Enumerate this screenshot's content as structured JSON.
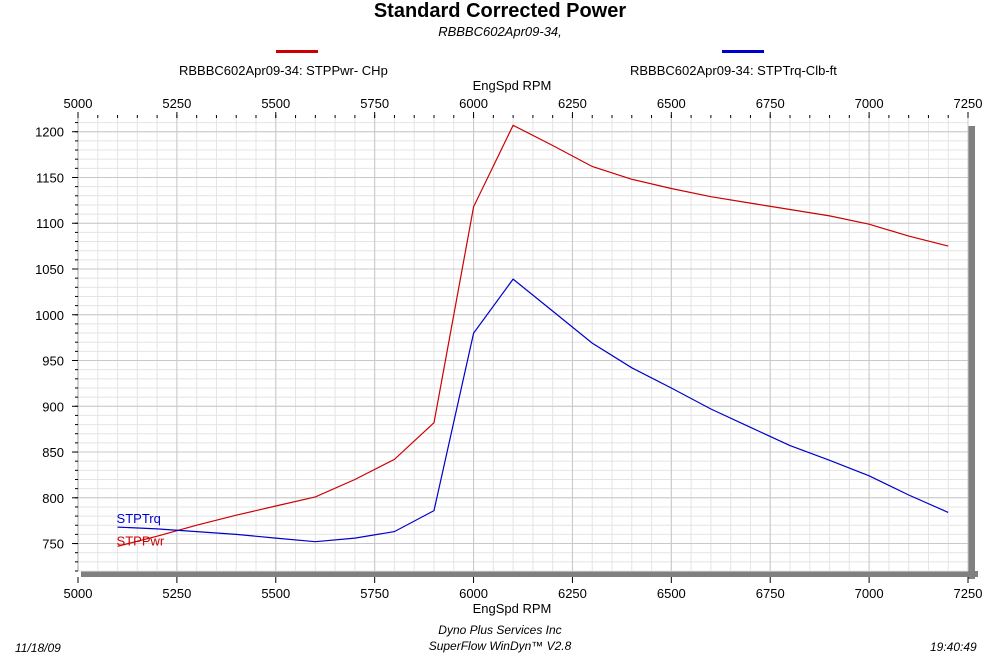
{
  "title": "Standard Corrected Power",
  "subtitle": "RBBBC602Apr09-34,",
  "legend": [
    {
      "label": "RBBBC602Apr09-34: STPPwr- CHp",
      "color": "#cc0000"
    },
    {
      "label": "RBBBC602Apr09-34: STPTrq-Clb-ft",
      "color": "#0000cc"
    }
  ],
  "footer": {
    "date": "11/18/09",
    "company": "Dyno Plus Services Inc",
    "software": "SuperFlow WinDyn™ V2.8",
    "time": "19:40:49"
  },
  "chart_data": {
    "type": "line",
    "title": "Standard Corrected Power",
    "subtitle": "RBBBC602Apr09-34,",
    "xlabel": "EngSpd  RPM",
    "ylabel": "",
    "xlim": [
      5000,
      7250
    ],
    "ylim": [
      720,
      1215
    ],
    "xticks": [
      5000,
      5250,
      5500,
      5750,
      6000,
      6250,
      6500,
      6750,
      7000,
      7250
    ],
    "yticks": [
      750,
      800,
      850,
      900,
      950,
      1000,
      1050,
      1100,
      1150,
      1200
    ],
    "grid": true,
    "legend_position": "top",
    "series": [
      {
        "name": "STPPwr",
        "legend_label": "RBBBC602Apr09-34: STPPwr- CHp",
        "color": "#cc0000",
        "x": [
          5100,
          5200,
          5300,
          5400,
          5500,
          5600,
          5700,
          5800,
          5900,
          6000,
          6100,
          6200,
          6300,
          6400,
          6500,
          6600,
          6700,
          6800,
          6900,
          7000,
          7100,
          7200
        ],
        "y": [
          747,
          758,
          770,
          781,
          791,
          801,
          820,
          842,
          882,
          1118,
          1207,
          1185,
          1162,
          1148,
          1138,
          1129,
          1122,
          1115,
          1108,
          1099,
          1086,
          1075
        ]
      },
      {
        "name": "STPTrq",
        "legend_label": "RBBBC602Apr09-34: STPTrq-Clb-ft",
        "color": "#0000cc",
        "x": [
          5100,
          5200,
          5300,
          5400,
          5500,
          5600,
          5700,
          5800,
          5900,
          6000,
          6100,
          6200,
          6300,
          6400,
          6500,
          6600,
          6700,
          6800,
          6900,
          7000,
          7100,
          7200
        ],
        "y": [
          768,
          766,
          763,
          760,
          756,
          752,
          756,
          763,
          786,
          980,
          1039,
          1004,
          969,
          942,
          920,
          897,
          877,
          857,
          841,
          824,
          803,
          784
        ]
      }
    ],
    "series_labels": [
      "STPTrq",
      "STPPwr"
    ]
  }
}
